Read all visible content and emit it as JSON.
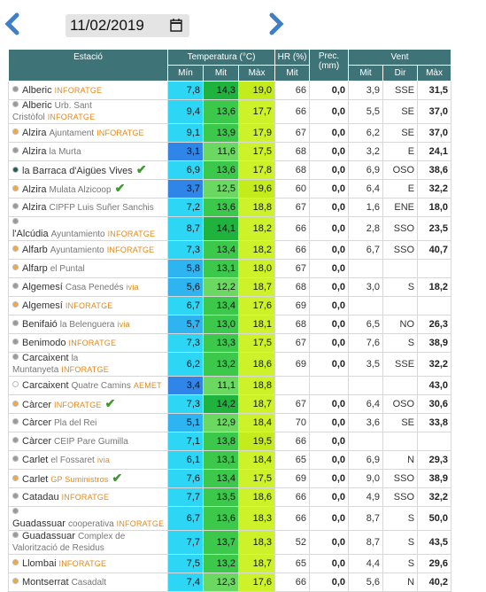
{
  "date": "11/02/2019",
  "header": {
    "station": "Estació",
    "temp": "Temperatura (°C)",
    "hr": "HR (%)",
    "prec": "Prec. (mm)",
    "wind": "Vent",
    "sub": [
      "Mín",
      "Mit",
      "Màx",
      "Mit",
      "Mit",
      "Dir",
      "Màx"
    ]
  },
  "rows": [
    {
      "name": "Alberic",
      "sub": null,
      "tag": "INFORATGE",
      "check": false,
      "dot": "#9a9a9a",
      "cells": [
        "7,8",
        "14,3",
        "19,0",
        "66",
        "0,0",
        "3,9",
        "SSE",
        "31,5"
      ]
    },
    {
      "name": "Alberic",
      "sub": "Urb. Sant Cristòfol",
      "tag": "INFORATGE",
      "check": false,
      "dot": "#9a9a9a",
      "cells": [
        "9,4",
        "13,6",
        "17,7",
        "66",
        "0,0",
        "5,5",
        "SE",
        "37,0"
      ]
    },
    {
      "name": "Alzira",
      "sub": "Ajuntament",
      "tag": "INFORATGE",
      "check": false,
      "dot": "#f0a93a",
      "cells": [
        "9,1",
        "13,9",
        "17,9",
        "67",
        "0,0",
        "6,2",
        "SE",
        "37,0"
      ]
    },
    {
      "name": "Alzira",
      "sub": "la Murta",
      "tag": null,
      "check": false,
      "dot": "#9a9a9a",
      "cells": [
        "3,1",
        "11,6",
        "17,5",
        "68",
        "0,0",
        "3,2",
        "E",
        "24,1"
      ]
    },
    {
      "name": "la Barraca d'Aigües Vives",
      "sub": null,
      "tag": null,
      "check": true,
      "dot": "#1d5e5a",
      "cells": [
        "6,9",
        "13,6",
        "17,8",
        "68",
        "0,0",
        "6,9",
        "OSO",
        "38,6"
      ]
    },
    {
      "name": "Alzira",
      "sub": "Mulata Alzicoop",
      "tag": null,
      "check": true,
      "dot": "#f0a93a",
      "cells": [
        "3,7",
        "12,5",
        "19,6",
        "60",
        "0,0",
        "6,4",
        "E",
        "32,2"
      ]
    },
    {
      "name": "Alzira",
      "sub": "CIPFP Luis Suñer Sanchis",
      "tag": null,
      "check": false,
      "dot": "#9a9a9a",
      "cells": [
        "7,2",
        "13,6",
        "18,8",
        "67",
        "0,0",
        "1,6",
        "ENE",
        "18,0"
      ]
    },
    {
      "name": "l'Alcúdia",
      "sub": "Ayuntamiento",
      "tag": "INFORATGE",
      "check": false,
      "dot": "#9a9a9a",
      "cells": [
        "8,7",
        "14,1",
        "18,2",
        "66",
        "0,0",
        "2,8",
        "SSO",
        "23,5"
      ]
    },
    {
      "name": "Alfarb",
      "sub": "Ayuntamiento",
      "tag": "INFORATGE",
      "check": false,
      "dot": "#f0a93a",
      "cells": [
        "7,3",
        "13,4",
        "18,2",
        "66",
        "0,0",
        "6,7",
        "SSO",
        "40,7"
      ]
    },
    {
      "name": "Alfarp",
      "sub": "el Puntal",
      "tag": null,
      "check": false,
      "dot": "#f0a93a",
      "cells": [
        "5,8",
        "13,1",
        "18,0",
        "67",
        "0,0",
        null,
        null,
        null
      ]
    },
    {
      "name": "Algemesí",
      "sub": "Casa Penedés",
      "tag": "ivia",
      "check": false,
      "dot": "#9a9a9a",
      "cells": [
        "5,6",
        "12,2",
        "18,7",
        "68",
        "0,0",
        "3,0",
        "S",
        "18,2"
      ]
    },
    {
      "name": "Algemesí",
      "sub": null,
      "tag": "INFORATGE",
      "check": false,
      "dot": "#f0a93a",
      "cells": [
        "6,7",
        "13,4",
        "17,6",
        "69",
        "0,0",
        null,
        null,
        null
      ]
    },
    {
      "name": "Benifaió",
      "sub": "la Belenguera",
      "tag": "ivia",
      "check": false,
      "dot": "#9a9a9a",
      "cells": [
        "5,7",
        "13,0",
        "18,1",
        "68",
        "0,0",
        "6,5",
        "NO",
        "26,3"
      ]
    },
    {
      "name": "Benimodo",
      "sub": null,
      "tag": "INFORATGE",
      "check": false,
      "dot": "#9a9a9a",
      "cells": [
        "7,3",
        "13,3",
        "17,5",
        "67",
        "0,0",
        "7,6",
        "S",
        "38,9"
      ]
    },
    {
      "name": "Carcaixent",
      "sub": "la Muntanyeta",
      "tag": "INFORATGE",
      "check": false,
      "dot": "#9a9a9a",
      "cells": [
        "6,2",
        "13,2",
        "18,6",
        "69",
        "0,0",
        "3,5",
        "SSE",
        "32,2"
      ]
    },
    {
      "name": "Carcaixent",
      "sub": "Quatre Camins",
      "tag": "AEMET",
      "check": false,
      "dot": "#ffffff",
      "cells": [
        "3,4",
        "11,1",
        "18,8",
        null,
        null,
        null,
        null,
        "43,0"
      ]
    },
    {
      "name": "Càrcer",
      "sub": null,
      "tag": "INFORATGE",
      "check": true,
      "dot": "#f0a93a",
      "cells": [
        "7,3",
        "14,2",
        "18,7",
        "67",
        "0,0",
        "6,4",
        "OSO",
        "30,6"
      ]
    },
    {
      "name": "Càrcer",
      "sub": "Pla del Rei",
      "tag": null,
      "check": false,
      "dot": "#9a9a9a",
      "cells": [
        "5,1",
        "12,9",
        "18,4",
        "70",
        "0,0",
        "3,6",
        "SE",
        "33,8"
      ]
    },
    {
      "name": "Càrcer",
      "sub": "CEIP Pare Gumilla",
      "tag": null,
      "check": false,
      "dot": "#9a9a9a",
      "cells": [
        "7,1",
        "13,8",
        "19,5",
        "66",
        "0,0",
        null,
        null,
        null
      ]
    },
    {
      "name": "Carlet",
      "sub": "el Fossaret",
      "tag": "ivia",
      "check": false,
      "dot": "#9a9a9a",
      "cells": [
        "6,1",
        "13,1",
        "18,4",
        "65",
        "0,0",
        "6,9",
        "N",
        "29,3"
      ]
    },
    {
      "name": "Carlet",
      "sub": null,
      "tag": "GP Suministros",
      "check": true,
      "dot": "#f0a93a",
      "cells": [
        "7,6",
        "13,4",
        "17,5",
        "69",
        "0,0",
        "9,0",
        "SSO",
        "38,9"
      ]
    },
    {
      "name": "Catadau",
      "sub": null,
      "tag": "INFORATGE",
      "check": false,
      "dot": "#9a9a9a",
      "cells": [
        "7,7",
        "13,5",
        "18,6",
        "66",
        "0,0",
        "4,9",
        "SSO",
        "32,2"
      ]
    },
    {
      "name": "Guadassuar",
      "sub": "cooperativa",
      "tag": "INFORATGE",
      "check": false,
      "dot": "#9a9a9a",
      "cells": [
        "6,7",
        "13,6",
        "18,3",
        "66",
        "0,0",
        "8,7",
        "S",
        "50,0"
      ]
    },
    {
      "name": "Guadassuar",
      "sub": "Complex de Valorització de Residus",
      "tag": null,
      "check": false,
      "dot": "#9a9a9a",
      "cells": [
        "7,7",
        "13,7",
        "18,3",
        "52",
        "0,0",
        "8,7",
        "S",
        "43,5"
      ]
    },
    {
      "name": "Llombai",
      "sub": null,
      "tag": "INFORATGE",
      "check": false,
      "dot": "#f0a93a",
      "cells": [
        "7,5",
        "13,2",
        "18,7",
        "65",
        "0,0",
        "4,4",
        "S",
        "29,6"
      ]
    },
    {
      "name": "Montserrat",
      "sub": "Casadalt",
      "tag": null,
      "check": false,
      "dot": "#f0a93a",
      "cells": [
        "7,4",
        "12,3",
        "17,6",
        "66",
        "0,0",
        "5,6",
        "N",
        "40,2"
      ]
    }
  ]
}
